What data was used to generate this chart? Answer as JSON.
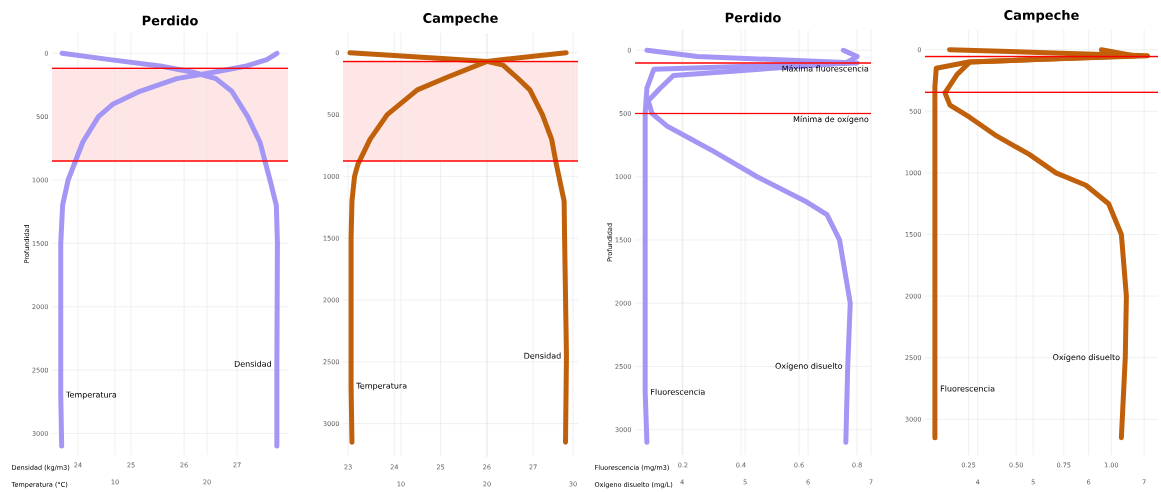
{
  "chart_data": [
    {
      "type": "line",
      "title": "Perdido",
      "ylabel": "Profundidad",
      "xlabel": "Densidad (kg/m3)",
      "x2label": "Temperatura (°C)",
      "grid": true,
      "xlim": [
        23.51,
        27.96
      ],
      "xticks": [
        24,
        25,
        26,
        27
      ],
      "x2lim": [
        3.15,
        28.8
      ],
      "x2ticks": [
        10,
        20
      ],
      "ylim": [
        3170,
        -160
      ],
      "yticks": [
        0,
        500,
        1000,
        1500,
        2000,
        2500,
        3000
      ],
      "bands": [
        {
          "axis": "y",
          "from": 118,
          "to": 850,
          "color": "#ffe6e6"
        }
      ],
      "ref_lines": [
        {
          "axis": "y",
          "value": 118,
          "color": "#ff0000"
        },
        {
          "axis": "y",
          "value": 850,
          "color": "#ff0000"
        }
      ],
      "series": [
        {
          "name": "Temperatura",
          "axis": "x2",
          "color": "#a396f5",
          "x": [
            27.6,
            26.5,
            24.3,
            20.7,
            16.7,
            12.7,
            9.8,
            8.2,
            6.5,
            5.7,
            4.9,
            4.3,
            4.1,
            4.1,
            4.2
          ],
          "values": [
            0,
            50,
            100,
            150,
            200,
            300,
            400,
            500,
            700,
            850,
            1000,
            1200,
            1500,
            2700,
            3100
          ]
        },
        {
          "name": "Densidad",
          "color": "#a396f5",
          "x": [
            23.7,
            24.6,
            25.55,
            26.17,
            26.6,
            26.9,
            27.2,
            27.43,
            27.62,
            27.74,
            27.76,
            27.75,
            27.75
          ],
          "values": [
            0,
            50,
            100,
            150,
            200,
            300,
            500,
            700,
            1000,
            1200,
            1500,
            2450,
            3100
          ]
        }
      ]
    },
    {
      "type": "line",
      "title": "Campeche",
      "grid": true,
      "xlim": [
        22.89,
        27.97
      ],
      "xticks": [
        23,
        24,
        25,
        26,
        27
      ],
      "x2lim": [
        3.26,
        30.58
      ],
      "x2ticks": [
        10,
        20,
        30
      ],
      "ylim": [
        3270,
        -160
      ],
      "yticks": [
        0,
        500,
        1000,
        1500,
        2000,
        2500,
        3000
      ],
      "bands": [
        {
          "axis": "y",
          "from": 71,
          "to": 875,
          "color": "#ffe6e6"
        }
      ],
      "ref_lines": [
        {
          "axis": "y",
          "value": 71,
          "color": "#ff0000"
        },
        {
          "axis": "y",
          "value": 875,
          "color": "#ff0000"
        }
      ],
      "series": [
        {
          "name": "Temperatura",
          "axis": "x2",
          "color": "#c0600a",
          "x": [
            29.2,
            22.4,
            20.0,
            15.3,
            11.9,
            8.4,
            6.4,
            5.0,
            4.6,
            4.3,
            4.2,
            4.2,
            4.3
          ],
          "values": [
            0,
            50,
            70,
            200,
            300,
            500,
            700,
            900,
            1000,
            1200,
            1500,
            2700,
            3150
          ]
        },
        {
          "name": "Densidad",
          "color": "#c0600a",
          "x": [
            23.04,
            25.2,
            26.0,
            26.35,
            26.65,
            26.93,
            27.2,
            27.4,
            27.5,
            27.67,
            27.68,
            27.72,
            27.7
          ],
          "values": [
            0,
            50,
            70,
            100,
            200,
            300,
            500,
            700,
            900,
            1200,
            1500,
            2450,
            3150
          ]
        }
      ]
    },
    {
      "type": "line",
      "title": "Perdido",
      "ylabel": "Profundidad",
      "xlabel": "Fluorescencia (mg/m3)",
      "x2label": "Oxígeno disuelto (mg/L)",
      "grid": true,
      "xlim": [
        0.035,
        0.848
      ],
      "xticks": [
        0.2,
        0.4,
        0.6,
        0.8
      ],
      "x2lim": [
        3.25,
        7.0
      ],
      "x2ticks": [
        4,
        5,
        6,
        7
      ],
      "ylim": [
        3200,
        -160
      ],
      "yticks": [
        0,
        500,
        1000,
        1500,
        2000,
        2500,
        3000
      ],
      "ref_lines": [
        {
          "axis": "y",
          "value": 100,
          "label": "Máxima fluorescencia",
          "color": "#ff0000"
        },
        {
          "axis": "y",
          "value": 500,
          "label": "Mínima de oxígeno",
          "color": "#ff0000"
        }
      ],
      "series": [
        {
          "name": "Fluorescencia",
          "color": "#a396f5",
          "x": [
            0.076,
            0.25,
            0.8,
            0.1,
            0.076,
            0.07,
            0.07,
            0.07,
            0.07,
            0.076
          ],
          "values": [
            0,
            50,
            100,
            150,
            300,
            500,
            1000,
            2000,
            2700,
            3100
          ]
        },
        {
          "name": "Oxígeno disuelto",
          "axis": "x2",
          "color": "#a396f5",
          "x": [
            6.56,
            6.78,
            6.6,
            3.86,
            3.65,
            3.46,
            3.52,
            3.76,
            4.13,
            4.5,
            5.19,
            5.98,
            6.3,
            6.5,
            6.67,
            6.63,
            6.6
          ],
          "values": [
            0,
            50,
            100,
            200,
            300,
            400,
            500,
            600,
            700,
            800,
            1000,
            1200,
            1300,
            1500,
            2000,
            2500,
            3100
          ]
        }
      ]
    },
    {
      "type": "line",
      "title": "Campeche",
      "grid": true,
      "xlim": [
        0.021,
        1.245
      ],
      "xticks": [
        {
          "value": 0.25,
          "label": "0.25"
        },
        {
          "value": 0.5,
          "label": "0.50"
        },
        {
          "value": 0.75,
          "label": "0.75"
        },
        {
          "value": 1.0,
          "label": "1.00"
        }
      ],
      "x2lim": [
        3.05,
        7.25
      ],
      "x2ticks": [
        4,
        5,
        6,
        7
      ],
      "ylim": [
        3290,
        -160
      ],
      "yticks": [
        0,
        500,
        1000,
        1500,
        2000,
        2500,
        3000
      ],
      "ref_lines": [
        {
          "axis": "y",
          "value": 55,
          "color": "#ff0000"
        },
        {
          "axis": "y",
          "value": 345,
          "color": "#ff0000"
        }
      ],
      "series": [
        {
          "name": "Fluorescencia",
          "color": "#c0600a",
          "x": [
            0.15,
            0.78,
            1.19,
            0.6,
            0.25,
            0.08,
            0.073,
            0.073,
            0.073,
            0.073
          ],
          "values": [
            0,
            30,
            50,
            80,
            100,
            150,
            300,
            1000,
            2750,
            3150
          ]
        },
        {
          "name": "Oxígeno disuelto",
          "axis": "x2",
          "color": "#c0600a",
          "x": [
            6.23,
            6.84,
            3.86,
            3.63,
            3.41,
            3.5,
            3.86,
            4.34,
            4.93,
            5.41,
            5.95,
            6.36,
            6.59,
            6.68,
            6.66,
            6.59
          ],
          "values": [
            0,
            50,
            100,
            200,
            350,
            450,
            550,
            700,
            850,
            1000,
            1100,
            1250,
            1500,
            2000,
            2500,
            3150
          ]
        }
      ]
    }
  ]
}
